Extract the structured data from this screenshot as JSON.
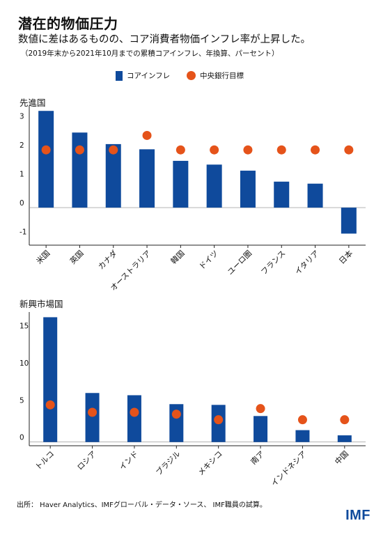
{
  "title": "潜在的物価圧力",
  "subtitle": "数値に差はあるものの、コア消費者物価インフレ率が上昇した。",
  "note": "（2019年末から2021年10月までの累積コアインフレ、年換算、パーセント）",
  "legend": {
    "bar_label": "コアインフレ",
    "dot_label": "中央銀行目標"
  },
  "colors": {
    "bar": "#0f4a9c",
    "dot": "#e5531a",
    "axis": "#222222",
    "grid": "#dddddd"
  },
  "source": "出所：  Haver Analytics、IMFグローバル・データ・ソース、 IMF職員の試算。",
  "logo": "IMF",
  "chart_data": [
    {
      "type": "bar",
      "panel_label": "先進国",
      "categories": [
        "米国",
        "英国",
        "カナダ",
        "オーストラリア",
        "韓国",
        "ドイツ",
        "ユーロ圏",
        "フランス",
        "イタリア",
        "日本"
      ],
      "series": [
        {
          "name": "コアインフレ",
          "type": "bar",
          "values": [
            3.35,
            2.6,
            2.2,
            2.02,
            1.62,
            1.49,
            1.28,
            0.9,
            0.83,
            -0.9
          ]
        },
        {
          "name": "中央銀行目標",
          "type": "scatter",
          "values": [
            2.0,
            2.0,
            2.0,
            2.5,
            2.0,
            2.0,
            2.0,
            2.0,
            2.0,
            2.0
          ]
        }
      ],
      "yticks": [
        -1,
        0,
        1,
        2,
        3
      ],
      "ylim": [
        -1.3,
        3.5
      ],
      "grid": false
    },
    {
      "type": "bar",
      "panel_label": "新興市場国",
      "categories": [
        "トルコ",
        "ロシア",
        "インド",
        "ブラジル",
        "メキシコ",
        "南ア",
        "インドネシア",
        "中国"
      ],
      "series": [
        {
          "name": "コアインフレ",
          "type": "bar",
          "values": [
            16.8,
            6.6,
            6.3,
            5.1,
            5.0,
            3.5,
            1.6,
            0.9
          ]
        },
        {
          "name": "中央銀行目標",
          "type": "scatter",
          "values": [
            5.0,
            4.0,
            4.0,
            3.75,
            3.0,
            4.5,
            3.0,
            3.0
          ]
        }
      ],
      "yticks": [
        0,
        5,
        10,
        15
      ],
      "ylim": [
        -0.5,
        17.5
      ],
      "grid": false
    }
  ]
}
